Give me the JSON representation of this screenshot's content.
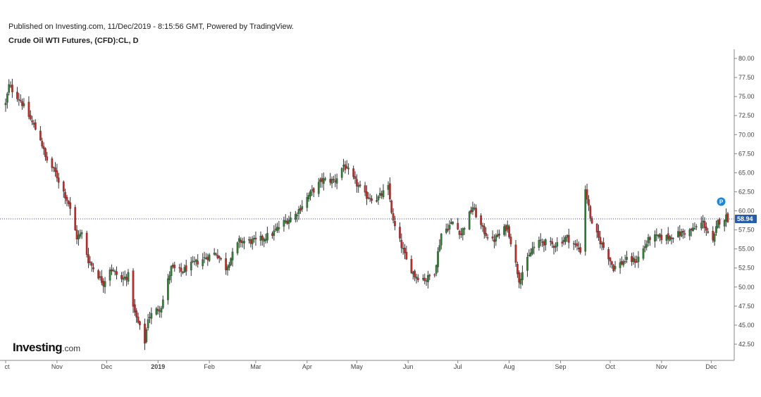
{
  "header": {
    "published": "Published on Investing.com, 11/Dec/2019 - 8:15:56 GMT, Powered by TradingView.",
    "title": "Crude Oil WTI Futures, (CFD):CL, D"
  },
  "logo": {
    "brand": "Investing",
    "tld": ".com"
  },
  "price_label": "58.94",
  "marker_label": "P",
  "colors": {
    "up": "#2e7d32",
    "down": "#c62828",
    "wick": "#333333",
    "price_line": "#3b4fb8",
    "price_badge": "#2a5cab",
    "marker": "#1e88d6",
    "axis": "#888888"
  },
  "chart_data": {
    "type": "candlestick",
    "title": "",
    "ylim": [
      40.5,
      81.5
    ],
    "yticks": [
      "80.00",
      "77.50",
      "75.00",
      "72.50",
      "70.00",
      "67.50",
      "65.00",
      "62.50",
      "60.00",
      "57.50",
      "55.00",
      "52.50",
      "50.00",
      "47.50",
      "45.00",
      "42.50"
    ],
    "x_range": [
      "2018-10-01",
      "2019-12-17"
    ],
    "months": [
      {
        "label": "ct",
        "date": "2018-10-01",
        "bold": false
      },
      {
        "label": "Nov",
        "date": "2018-11-01",
        "bold": false
      },
      {
        "label": "Dec",
        "date": "2018-12-01",
        "bold": false
      },
      {
        "label": "2019",
        "date": "2019-01-01",
        "bold": true
      },
      {
        "label": "Feb",
        "date": "2019-02-01",
        "bold": false
      },
      {
        "label": "Mar",
        "date": "2019-03-01",
        "bold": false
      },
      {
        "label": "Apr",
        "date": "2019-04-01",
        "bold": false
      },
      {
        "label": "May",
        "date": "2019-05-01",
        "bold": false
      },
      {
        "label": "Jun",
        "date": "2019-06-01",
        "bold": false
      },
      {
        "label": "Jul",
        "date": "2019-07-01",
        "bold": false
      },
      {
        "label": "Aug",
        "date": "2019-08-01",
        "bold": false
      },
      {
        "label": "Sep",
        "date": "2019-09-01",
        "bold": false
      },
      {
        "label": "Oct",
        "date": "2019-10-01",
        "bold": false
      },
      {
        "label": "Nov",
        "date": "2019-11-01",
        "bold": false
      },
      {
        "label": "Dec",
        "date": "2019-12-01",
        "bold": false
      }
    ],
    "current_price": 58.94,
    "marker_value": 61.2,
    "close_anchors": [
      [
        "2018-10-01",
        74.0
      ],
      [
        "2018-10-03",
        76.4
      ],
      [
        "2018-10-10",
        74.5
      ],
      [
        "2018-10-16",
        72.0
      ],
      [
        "2018-10-22",
        69.5
      ],
      [
        "2018-10-25",
        67.0
      ],
      [
        "2018-10-31",
        65.0
      ],
      [
        "2018-11-08",
        61.0
      ],
      [
        "2018-11-13",
        56.5
      ],
      [
        "2018-11-16",
        57.0
      ],
      [
        "2018-11-20",
        53.5
      ],
      [
        "2018-11-26",
        51.5
      ],
      [
        "2018-11-29",
        50.5
      ],
      [
        "2018-12-03",
        52.5
      ],
      [
        "2018-12-10",
        51.0
      ],
      [
        "2018-12-14",
        51.5
      ],
      [
        "2018-12-18",
        46.5
      ],
      [
        "2018-12-24",
        42.8
      ],
      [
        "2018-12-26",
        46.0
      ],
      [
        "2019-01-03",
        47.5
      ],
      [
        "2019-01-09",
        52.5
      ],
      [
        "2019-01-15",
        52.0
      ],
      [
        "2019-01-22",
        53.0
      ],
      [
        "2019-01-31",
        54.0
      ],
      [
        "2019-02-05",
        54.5
      ],
      [
        "2019-02-11",
        52.5
      ],
      [
        "2019-02-19",
        56.0
      ],
      [
        "2019-03-01",
        56.0
      ],
      [
        "2019-03-11",
        57.0
      ],
      [
        "2019-03-18",
        58.5
      ],
      [
        "2019-03-25",
        59.5
      ],
      [
        "2019-04-02",
        62.0
      ],
      [
        "2019-04-10",
        64.0
      ],
      [
        "2019-04-18",
        64.0
      ],
      [
        "2019-04-23",
        66.0
      ],
      [
        "2019-04-30",
        63.8
      ],
      [
        "2019-05-06",
        62.0
      ],
      [
        "2019-05-13",
        61.5
      ],
      [
        "2019-05-20",
        63.0
      ],
      [
        "2019-05-23",
        58.5
      ],
      [
        "2019-05-31",
        53.5
      ],
      [
        "2019-06-05",
        51.5
      ],
      [
        "2019-06-12",
        51.0
      ],
      [
        "2019-06-17",
        52.0
      ],
      [
        "2019-06-21",
        57.0
      ],
      [
        "2019-06-28",
        58.5
      ],
      [
        "2019-07-03",
        57.0
      ],
      [
        "2019-07-10",
        60.5
      ],
      [
        "2019-07-16",
        57.5
      ],
      [
        "2019-07-22",
        56.0
      ],
      [
        "2019-07-31",
        58.0
      ],
      [
        "2019-08-07",
        51.0
      ],
      [
        "2019-08-15",
        55.0
      ],
      [
        "2019-08-20",
        56.0
      ],
      [
        "2019-08-28",
        55.5
      ],
      [
        "2019-09-05",
        56.5
      ],
      [
        "2019-09-13",
        54.8
      ],
      [
        "2019-09-16",
        62.9
      ],
      [
        "2019-09-20",
        58.0
      ],
      [
        "2019-09-30",
        54.0
      ],
      [
        "2019-10-03",
        52.5
      ],
      [
        "2019-10-10",
        53.5
      ],
      [
        "2019-10-17",
        53.5
      ],
      [
        "2019-10-25",
        56.5
      ],
      [
        "2019-11-04",
        56.5
      ],
      [
        "2019-11-12",
        57.0
      ],
      [
        "2019-11-20",
        57.5
      ],
      [
        "2019-11-26",
        58.5
      ],
      [
        "2019-12-02",
        55.8
      ],
      [
        "2019-12-05",
        58.5
      ],
      [
        "2019-12-10",
        59.2
      ],
      [
        "2019-12-11",
        58.94
      ]
    ]
  }
}
